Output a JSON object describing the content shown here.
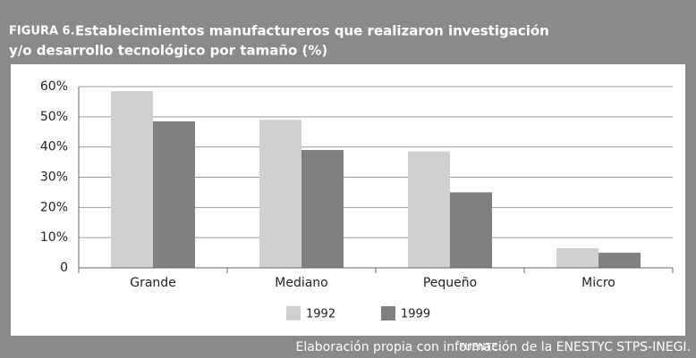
{
  "chart_data": {
    "type": "bar",
    "figure_label": "FIGURA 6.",
    "title_lines": [
      "Establecimientos manufactureros que realizaron investigación",
      "y/o desarrollo tecnológico por tamaño (%)"
    ],
    "categories": [
      "Grande",
      "Mediano",
      "Pequeño",
      "Micro"
    ],
    "series": [
      {
        "name": "1992",
        "color": "#d0d0d0",
        "values": [
          58.5,
          49,
          38.5,
          6.5
        ]
      },
      {
        "name": "1999",
        "color": "#808080",
        "values": [
          48.5,
          39,
          25,
          5
        ]
      }
    ],
    "ylim": [
      0,
      60
    ],
    "yticks": [
      0,
      {
        "value": 10,
        "label": "10%"
      },
      {
        "value": 20,
        "label": "20%"
      },
      {
        "value": 30,
        "label": "30%"
      },
      {
        "value": 40,
        "label": "40%"
      },
      {
        "value": 50,
        "label": "50%"
      },
      {
        "value": 60,
        "label": "60%"
      }
    ],
    "grid": true,
    "legend": "bottom",
    "source_label": "FUENTE:",
    "source": "Elaboración propia con información de la ENESTYC STPS-INEGI."
  }
}
